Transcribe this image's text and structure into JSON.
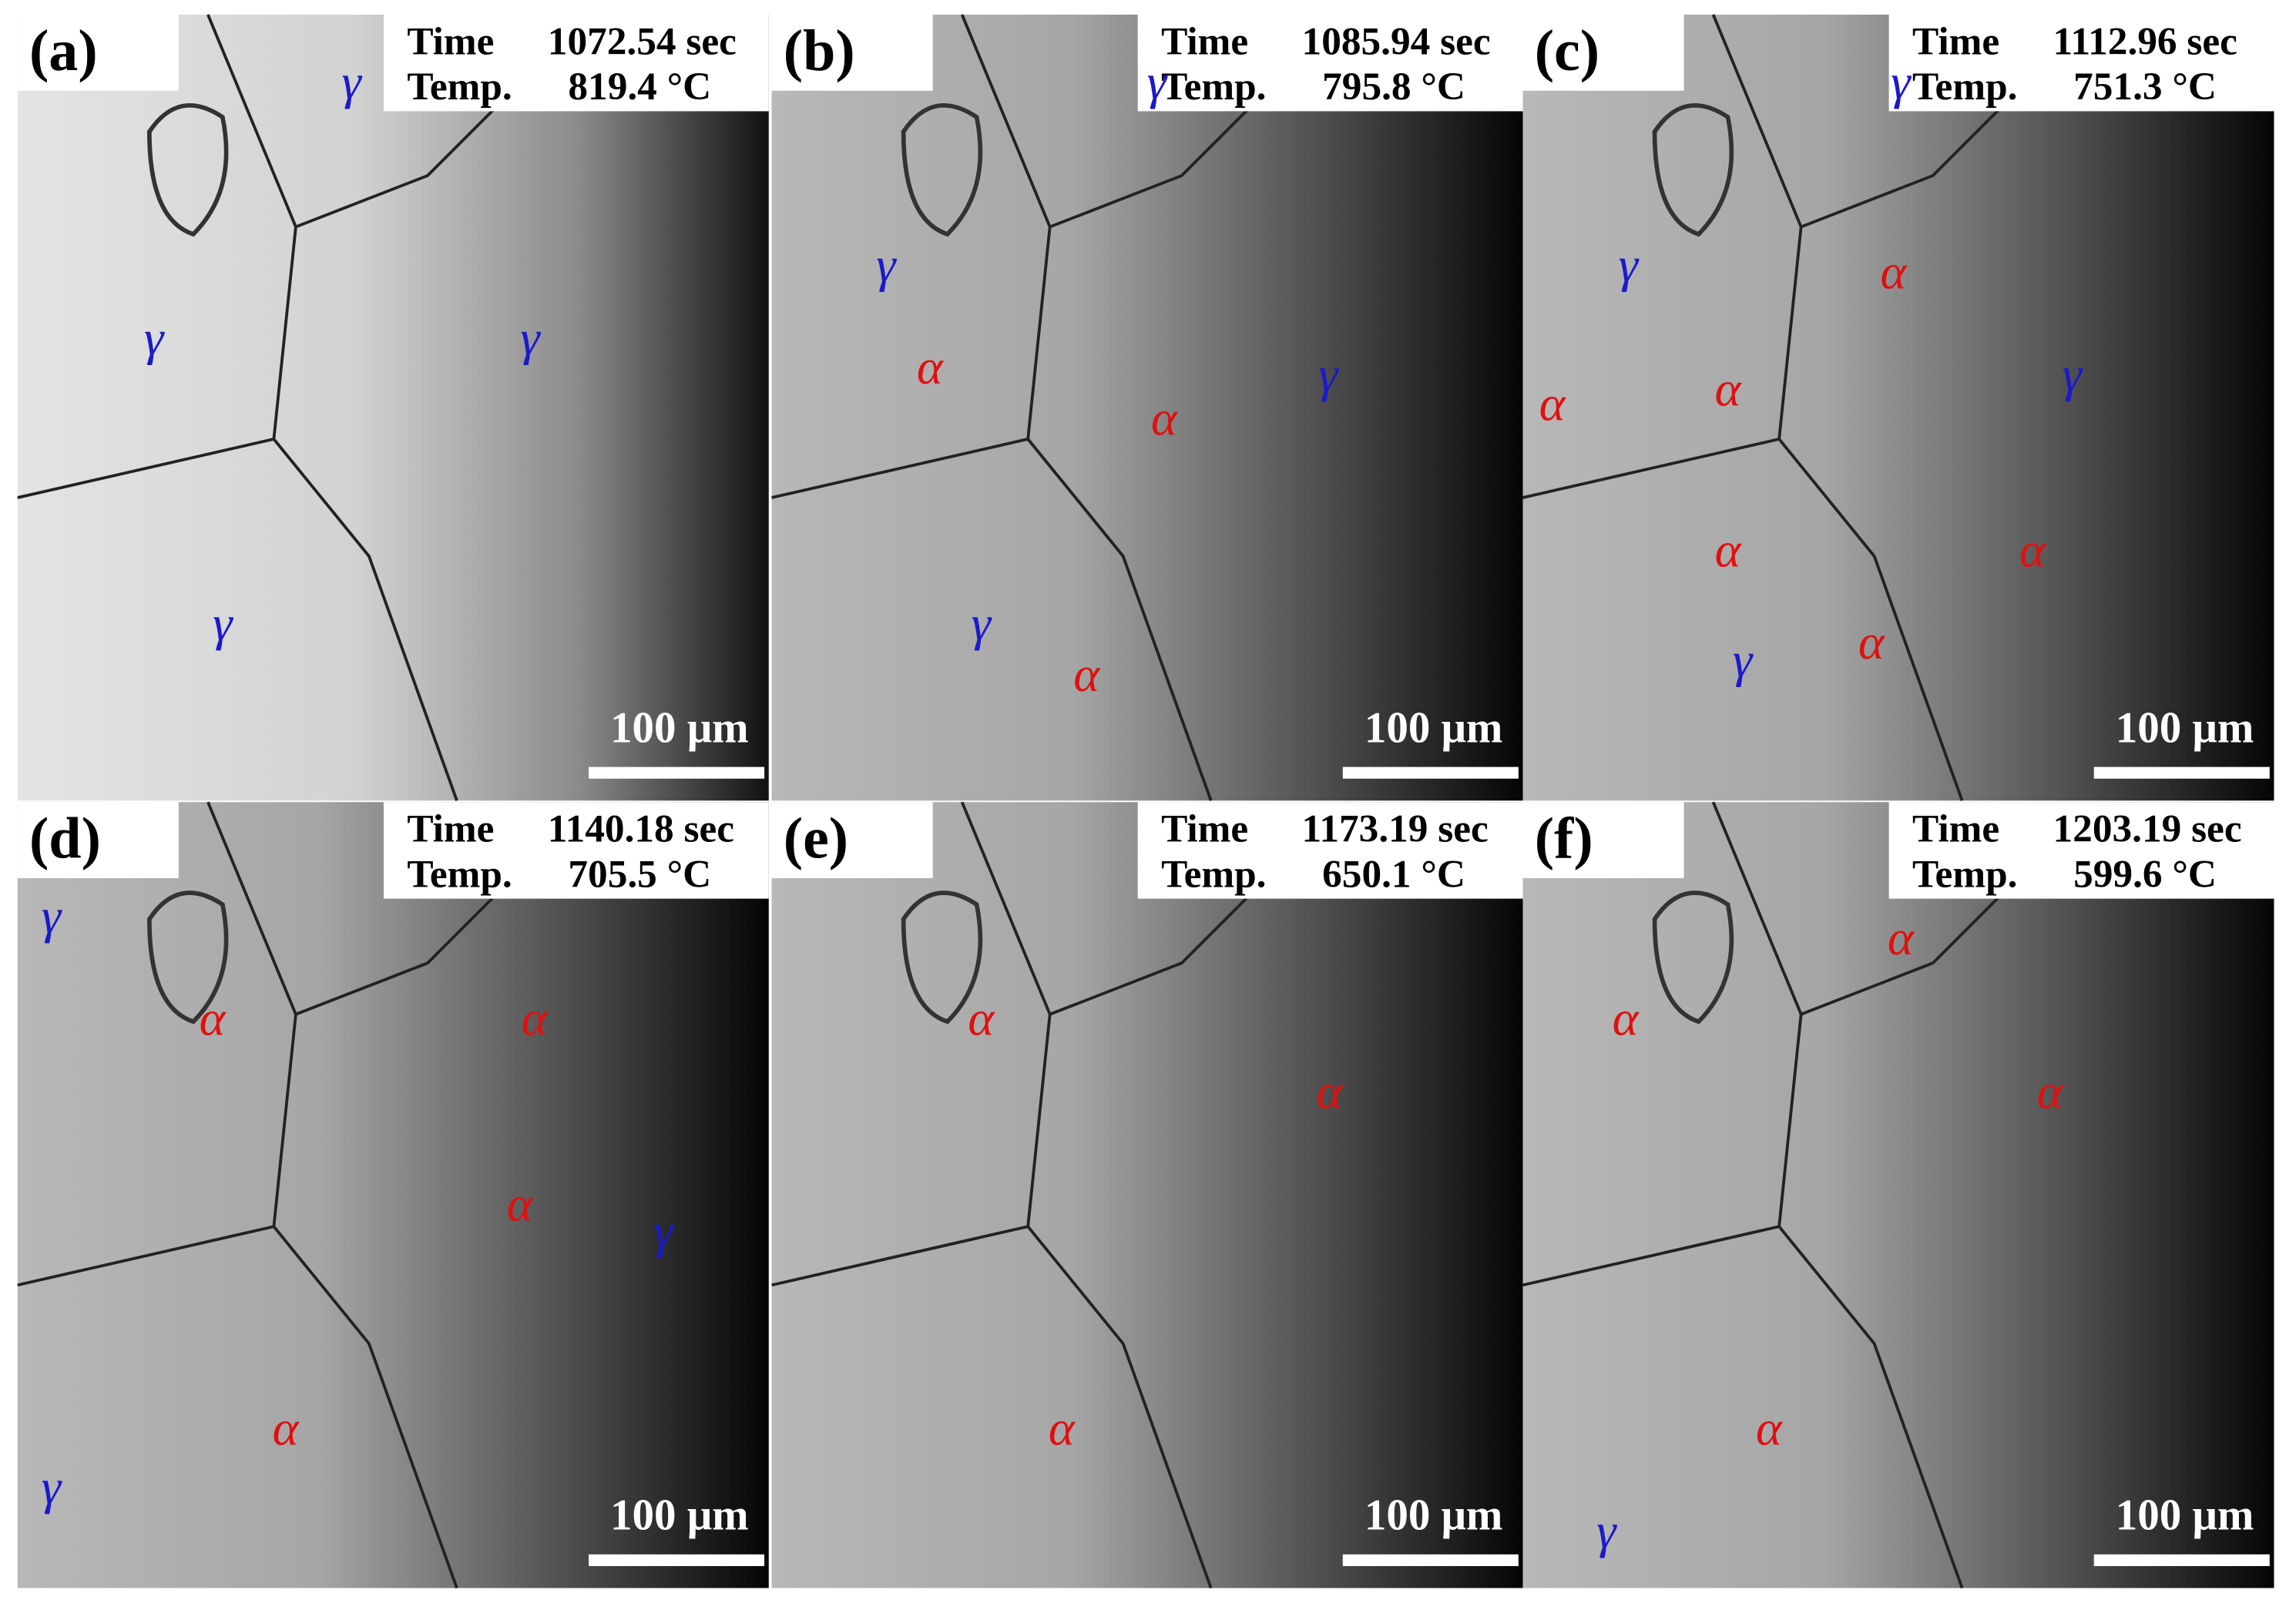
{
  "panels": [
    {
      "label": "(a)",
      "time_label": "Time",
      "time": "1072.54 sec",
      "temp_label": "Temp.",
      "temp": "819.4 °C",
      "scale_bar": "100 μm",
      "phases": [
        {
          "symbol": "γ",
          "color": "#1a1acc"
        },
        {
          "symbol": "γ",
          "color": "#1a1acc"
        },
        {
          "symbol": "γ",
          "color": "#1a1acc"
        },
        {
          "symbol": "γ",
          "color": "#1a1acc"
        }
      ]
    },
    {
      "label": "(b)",
      "time_label": "Time",
      "time": "1085.94 sec",
      "temp_label": "Temp.",
      "temp": "795.8 °C",
      "scale_bar": "100 μm",
      "phases": [
        {
          "symbol": "γ",
          "color": "#1a1acc"
        },
        {
          "symbol": "γ",
          "color": "#1a1acc"
        },
        {
          "symbol": "α",
          "color": "#e01010"
        },
        {
          "symbol": "α",
          "color": "#e01010"
        },
        {
          "symbol": "γ",
          "color": "#1a1acc"
        },
        {
          "symbol": "γ",
          "color": "#1a1acc"
        },
        {
          "symbol": "α",
          "color": "#e01010"
        }
      ]
    },
    {
      "label": "(c)",
      "time_label": "Time",
      "time": "1112.96 sec",
      "temp_label": "Temp.",
      "temp": "751.3 °C",
      "scale_bar": "100 μm",
      "phases": [
        {
          "symbol": "γ",
          "color": "#1a1acc"
        },
        {
          "symbol": "γ",
          "color": "#1a1acc"
        },
        {
          "symbol": "α",
          "color": "#e01010"
        },
        {
          "symbol": "α",
          "color": "#e01010"
        },
        {
          "symbol": "α",
          "color": "#e01010"
        },
        {
          "symbol": "γ",
          "color": "#1a1acc"
        },
        {
          "symbol": "α",
          "color": "#e01010"
        },
        {
          "symbol": "α",
          "color": "#e01010"
        },
        {
          "symbol": "γ",
          "color": "#1a1acc"
        },
        {
          "symbol": "α",
          "color": "#e01010"
        }
      ]
    },
    {
      "label": "(d)",
      "time_label": "Time",
      "time": "1140.18 sec",
      "temp_label": "Temp.",
      "temp": "705.5 °C",
      "scale_bar": "100 μm",
      "phases": [
        {
          "symbol": "γ",
          "color": "#1a1acc"
        },
        {
          "symbol": "α",
          "color": "#e01010"
        },
        {
          "symbol": "α",
          "color": "#e01010"
        },
        {
          "symbol": "α",
          "color": "#e01010"
        },
        {
          "symbol": "γ",
          "color": "#1a1acc"
        },
        {
          "symbol": "α",
          "color": "#e01010"
        },
        {
          "symbol": "γ",
          "color": "#1a1acc"
        }
      ]
    },
    {
      "label": "(e)",
      "time_label": "Time",
      "time": "1173.19 sec",
      "temp_label": "Temp.",
      "temp": "650.1 °C",
      "scale_bar": "100 μm",
      "phases": [
        {
          "symbol": "α",
          "color": "#e01010"
        },
        {
          "symbol": "α",
          "color": "#e01010"
        },
        {
          "symbol": "α",
          "color": "#e01010"
        }
      ]
    },
    {
      "label": "(f)",
      "time_label": "Time",
      "time": "1203.19 sec",
      "temp_label": "Temp.",
      "temp": "599.6 °C",
      "scale_bar": "100 μm",
      "phases": [
        {
          "symbol": "α",
          "color": "#e01010"
        },
        {
          "symbol": "α",
          "color": "#e01010"
        },
        {
          "symbol": "α",
          "color": "#e01010"
        },
        {
          "symbol": "α",
          "color": "#e01010"
        },
        {
          "symbol": "γ",
          "color": "#1a1acc"
        }
      ]
    }
  ]
}
